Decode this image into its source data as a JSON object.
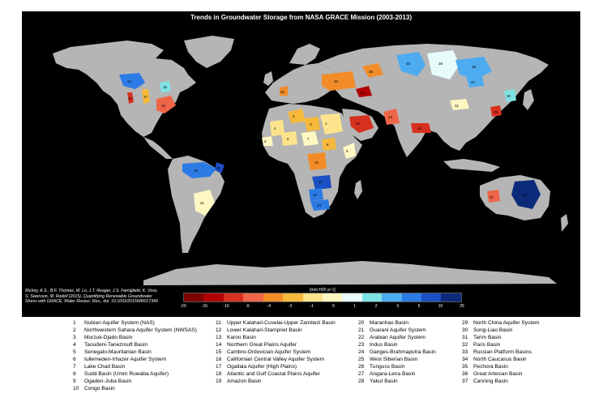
{
  "title": "Trends in Groundwater Storage from NASA GRACE Mission (2003-2013)",
  "citation": [
    "Richey, A.S., B.F. Thomas, M. Lo, J.T. Reager, J.S. Famiglietti, K. Voss,",
    "S. Swenson, M. Rodell (2015), Quantifying Renewable Groundwater",
    "Stress with GRACE, Water Resour. Res., doi: 10.1002/2015WR017349"
  ],
  "colorbar": {
    "unit": "[mm H20 yr-1]",
    "ticks": [
      "-20",
      "-15",
      "-10",
      "-6",
      "-4",
      "-2",
      "-1",
      "0",
      "1",
      "2",
      "3",
      "5",
      "10",
      "25"
    ],
    "colors": [
      "#7f0000",
      "#b20000",
      "#d7301f",
      "#ef6548",
      "#f28c28",
      "#f6b93b",
      "#fde48c",
      "#fff7c2",
      "#e8fbfb",
      "#7fe3e3",
      "#4dabf0",
      "#2c7be5",
      "#1b4fc4",
      "#0b2a7a"
    ]
  },
  "map_colors": {
    "ocean": "#000000",
    "land": "#b5b5b5"
  },
  "basin_labels": [
    "1",
    "2",
    "3",
    "4",
    "5",
    "6",
    "7",
    "8",
    "9",
    "10",
    "11",
    "12",
    "13",
    "14",
    "15",
    "16",
    "17",
    "18",
    "19",
    "20",
    "21",
    "22",
    "23",
    "24",
    "25",
    "26",
    "27",
    "28",
    "29",
    "30",
    "31",
    "32",
    "33",
    "34",
    "35",
    "36",
    "37"
  ],
  "legend": [
    {
      "num": "1",
      "name": "Nubian Aquifer System (NAS)"
    },
    {
      "num": "2",
      "name": "Northwestern Sahara Aquifer System (NWSAS)"
    },
    {
      "num": "3",
      "name": "Murzuk-Djado Basin"
    },
    {
      "num": "4",
      "name": "Taoudeni-Tanezrouft Basin"
    },
    {
      "num": "5",
      "name": "Senegalo-Mauritanian Basin"
    },
    {
      "num": "6",
      "name": "Iullemeden-Irhazer Aquifer System"
    },
    {
      "num": "7",
      "name": "Lake Chad Basin"
    },
    {
      "num": "8",
      "name": "Sudd Basin (Umm Ruwaba Aquifer)"
    },
    {
      "num": "9",
      "name": "Ogaden-Juba Basin"
    },
    {
      "num": "10",
      "name": "Congo Basin"
    },
    {
      "num": "11",
      "name": "Upper Kalahari-Cuvelai-Upper Zambezi Basin"
    },
    {
      "num": "12",
      "name": "Lower Kalahari-Stampriet Basin"
    },
    {
      "num": "13",
      "name": "Karoo Basin"
    },
    {
      "num": "14",
      "name": "Northern Great Plains Aquifer"
    },
    {
      "num": "15",
      "name": "Cambro-Ordovician Aquifer System"
    },
    {
      "num": "16",
      "name": "Californian Central Valley Aquifer System"
    },
    {
      "num": "17",
      "name": "Ogallala Aquifer (High Plains)"
    },
    {
      "num": "18",
      "name": "Atlantic and Gulf Coastal Plains Aquifer"
    },
    {
      "num": "19",
      "name": "Amazon Basin"
    },
    {
      "num": "20",
      "name": "Maranhao Basin"
    },
    {
      "num": "21",
      "name": "Guarani Aquifer System"
    },
    {
      "num": "22",
      "name": "Arabian Aquifer System"
    },
    {
      "num": "23",
      "name": "Indus Basin"
    },
    {
      "num": "24",
      "name": "Ganges-Brahmaputra Basin"
    },
    {
      "num": "25",
      "name": "West Siberian Basin"
    },
    {
      "num": "26",
      "name": "Tunguss Basin"
    },
    {
      "num": "27",
      "name": "Angara-Lena Basin"
    },
    {
      "num": "28",
      "name": "Yakut Basin"
    },
    {
      "num": "29",
      "name": "North China Aquifer System"
    },
    {
      "num": "30",
      "name": "Song-Liao Basin"
    },
    {
      "num": "31",
      "name": "Tarim Basin"
    },
    {
      "num": "32",
      "name": "Paris Basin"
    },
    {
      "num": "33",
      "name": "Russian Platform Basins"
    },
    {
      "num": "34",
      "name": "North Caucasus Basin"
    },
    {
      "num": "35",
      "name": "Pechora Basin"
    },
    {
      "num": "36",
      "name": "Great Artesian Basin"
    },
    {
      "num": "37",
      "name": "Canning Basin"
    }
  ]
}
